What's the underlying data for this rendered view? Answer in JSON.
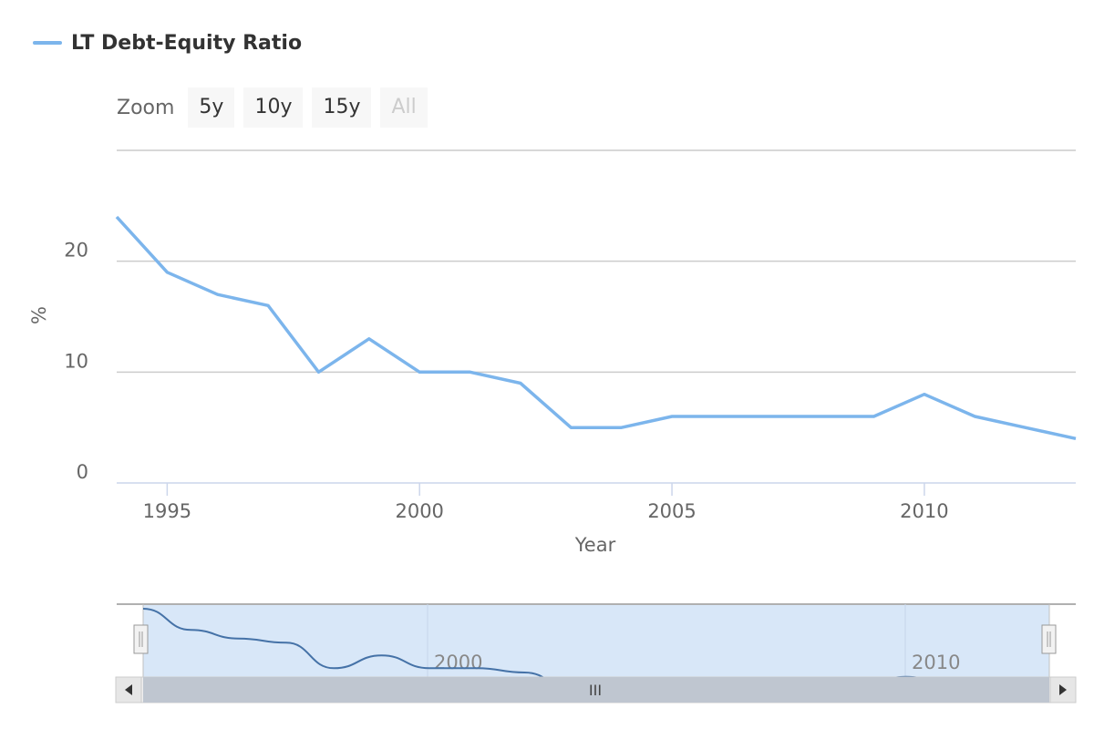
{
  "legend": {
    "label": "LT Debt-Equity Ratio",
    "color": "#7cb5ec"
  },
  "zoom": {
    "label": "Zoom",
    "buttons": [
      {
        "label": "5y",
        "disabled": false
      },
      {
        "label": "10y",
        "disabled": false
      },
      {
        "label": "15y",
        "disabled": false
      },
      {
        "label": "All",
        "disabled": true
      }
    ]
  },
  "navigator": {
    "labels": [
      "2000",
      "2010"
    ],
    "scroll_grip": "III"
  },
  "chart_data": {
    "type": "line",
    "series": [
      {
        "name": "LT Debt-Equity Ratio",
        "color": "#7cb5ec",
        "x": [
          1994,
          1995,
          1996,
          1997,
          1998,
          1999,
          2000,
          2001,
          2002,
          2003,
          2004,
          2005,
          2006,
          2007,
          2008,
          2009,
          2010,
          2011,
          2012,
          2013
        ],
        "values": [
          24,
          19,
          17,
          16,
          10,
          13,
          10,
          10,
          9,
          5,
          5,
          6,
          6,
          6,
          6,
          6,
          8,
          6,
          5,
          4
        ]
      }
    ],
    "xlabel": "Year",
    "ylabel": "%",
    "xlim": [
      1994,
      2013
    ],
    "ylim": [
      0,
      30
    ],
    "xticks": [
      "1995",
      "2000",
      "2005",
      "2010"
    ],
    "yticks": [
      "0",
      "10",
      "20"
    ],
    "grid": true,
    "legend_position": "top-left"
  }
}
